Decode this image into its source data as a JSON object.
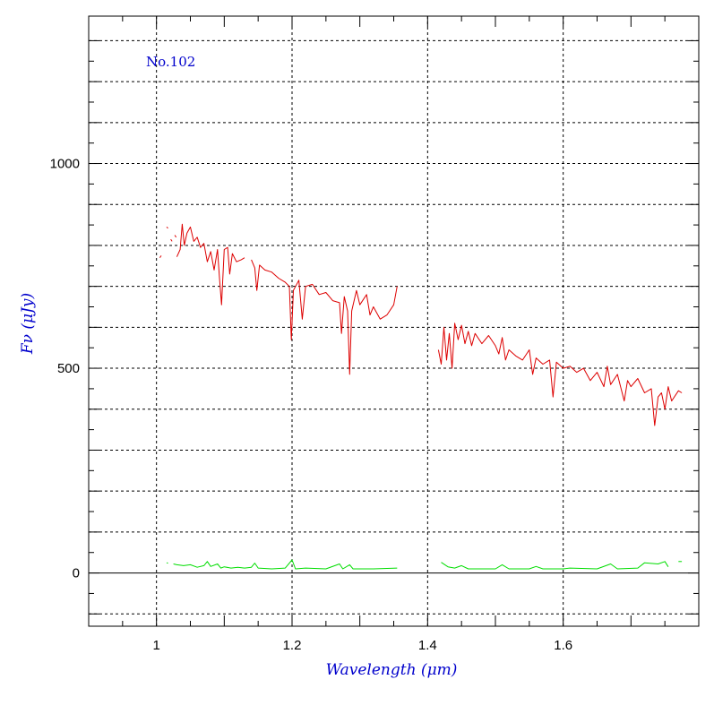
{
  "chart_data": {
    "type": "line",
    "annotation": "No.102",
    "xlabel": "Wavelength (μm)",
    "ylabel": "Fν (μJy)",
    "xlim": [
      0.9,
      1.8
    ],
    "ylim": [
      -130,
      1360
    ],
    "x_ticks": [
      1,
      1.2,
      1.4,
      1.6
    ],
    "x_tick_labels": [
      "1",
      "1.2",
      "1.4",
      "1.6"
    ],
    "y_ticks": [
      0,
      500,
      1000
    ],
    "y_tick_labels": [
      "0",
      "500",
      "1000"
    ],
    "grid": true,
    "colors": {
      "spectrum": "#dd0000",
      "noise": "#00dd00",
      "label": "#0000cc",
      "axis": "#000000"
    },
    "series": [
      {
        "role": "spectrum",
        "segments": [
          [
            [
              1.005,
              770
            ],
            [
              1.007,
              775
            ]
          ],
          [
            [
              1.015,
              845
            ],
            [
              1.017,
              842
            ]
          ],
          [
            [
              1.021,
              815
            ],
            [
              1.023,
              810
            ]
          ],
          [
            [
              1.027,
              825
            ],
            [
              1.029,
              820
            ]
          ],
          [
            [
              1.03,
              772
            ],
            [
              1.035,
              790
            ],
            [
              1.038,
              852
            ],
            [
              1.041,
              800
            ],
            [
              1.045,
              830
            ],
            [
              1.05,
              845
            ],
            [
              1.055,
              810
            ],
            [
              1.06,
              820
            ],
            [
              1.065,
              795
            ],
            [
              1.07,
              805
            ],
            [
              1.075,
              760
            ],
            [
              1.08,
              785
            ],
            [
              1.085,
              740
            ],
            [
              1.09,
              790
            ],
            [
              1.093,
              720
            ],
            [
              1.096,
              655
            ],
            [
              1.1,
              790
            ],
            [
              1.105,
              795
            ],
            [
              1.108,
              730
            ],
            [
              1.112,
              780
            ],
            [
              1.118,
              760
            ],
            [
              1.125,
              765
            ],
            [
              1.13,
              770
            ]
          ],
          [
            [
              1.14,
              765
            ],
            [
              1.145,
              745
            ],
            [
              1.148,
              690
            ],
            [
              1.152,
              752
            ],
            [
              1.16,
              740
            ],
            [
              1.17,
              735
            ],
            [
              1.18,
              720
            ],
            [
              1.19,
              710
            ],
            [
              1.196,
              700
            ],
            [
              1.199,
              570
            ],
            [
              1.202,
              690
            ],
            [
              1.21,
              715
            ],
            [
              1.215,
              620
            ],
            [
              1.22,
              700
            ],
            [
              1.23,
              705
            ],
            [
              1.24,
              680
            ],
            [
              1.25,
              685
            ],
            [
              1.26,
              665
            ],
            [
              1.27,
              660
            ],
            [
              1.273,
              585
            ],
            [
              1.277,
              675
            ],
            [
              1.282,
              640
            ],
            [
              1.285,
              485
            ],
            [
              1.288,
              640
            ],
            [
              1.295,
              690
            ],
            [
              1.3,
              655
            ],
            [
              1.31,
              680
            ],
            [
              1.315,
              630
            ],
            [
              1.32,
              650
            ],
            [
              1.33,
              620
            ],
            [
              1.34,
              630
            ],
            [
              1.35,
              655
            ],
            [
              1.355,
              700
            ]
          ],
          [
            [
              1.416,
              545
            ],
            [
              1.42,
              510
            ],
            [
              1.424,
              600
            ],
            [
              1.428,
              520
            ],
            [
              1.432,
              585
            ],
            [
              1.436,
              500
            ],
            [
              1.44,
              610
            ],
            [
              1.445,
              570
            ],
            [
              1.45,
              605
            ],
            [
              1.455,
              560
            ],
            [
              1.46,
              590
            ],
            [
              1.465,
              555
            ],
            [
              1.47,
              585
            ],
            [
              1.48,
              560
            ],
            [
              1.49,
              580
            ],
            [
              1.5,
              555
            ],
            [
              1.505,
              535
            ],
            [
              1.51,
              575
            ],
            [
              1.515,
              520
            ],
            [
              1.52,
              545
            ],
            [
              1.53,
              530
            ],
            [
              1.54,
              520
            ],
            [
              1.55,
              545
            ],
            [
              1.555,
              485
            ],
            [
              1.56,
              525
            ],
            [
              1.57,
              510
            ],
            [
              1.58,
              520
            ],
            [
              1.585,
              430
            ],
            [
              1.59,
              515
            ],
            [
              1.6,
              500
            ],
            [
              1.61,
              505
            ],
            [
              1.62,
              490
            ],
            [
              1.63,
              500
            ],
            [
              1.64,
              470
            ],
            [
              1.65,
              490
            ],
            [
              1.66,
              455
            ],
            [
              1.665,
              505
            ],
            [
              1.67,
              460
            ],
            [
              1.68,
              485
            ],
            [
              1.69,
              420
            ],
            [
              1.695,
              470
            ],
            [
              1.7,
              455
            ],
            [
              1.71,
              475
            ],
            [
              1.72,
              440
            ],
            [
              1.73,
              450
            ],
            [
              1.735,
              360
            ],
            [
              1.74,
              430
            ],
            [
              1.745,
              440
            ],
            [
              1.75,
              400
            ],
            [
              1.755,
              455
            ],
            [
              1.76,
              420
            ],
            [
              1.77,
              445
            ],
            [
              1.775,
              440
            ]
          ]
        ]
      },
      {
        "role": "noise",
        "segments": [
          [
            [
              1.015,
              25
            ],
            [
              1.017,
              24
            ]
          ],
          [
            [
              1.025,
              22
            ],
            [
              1.03,
              20
            ],
            [
              1.04,
              18
            ],
            [
              1.05,
              20
            ],
            [
              1.06,
              14
            ],
            [
              1.07,
              18
            ],
            [
              1.075,
              28
            ],
            [
              1.08,
              16
            ],
            [
              1.09,
              22
            ],
            [
              1.095,
              12
            ],
            [
              1.1,
              15
            ],
            [
              1.11,
              12
            ],
            [
              1.12,
              14
            ],
            [
              1.13,
              12
            ],
            [
              1.14,
              14
            ],
            [
              1.145,
              24
            ],
            [
              1.15,
              12
            ],
            [
              1.17,
              10
            ],
            [
              1.19,
              12
            ],
            [
              1.2,
              32
            ],
            [
              1.205,
              10
            ],
            [
              1.22,
              12
            ],
            [
              1.25,
              10
            ],
            [
              1.27,
              22
            ],
            [
              1.275,
              10
            ],
            [
              1.285,
              20
            ],
            [
              1.29,
              10
            ],
            [
              1.32,
              10
            ],
            [
              1.355,
              12
            ]
          ],
          [
            [
              1.42,
              26
            ],
            [
              1.43,
              15
            ],
            [
              1.44,
              12
            ],
            [
              1.45,
              18
            ],
            [
              1.46,
              10
            ],
            [
              1.5,
              10
            ],
            [
              1.51,
              20
            ],
            [
              1.52,
              10
            ],
            [
              1.55,
              10
            ],
            [
              1.56,
              16
            ],
            [
              1.57,
              10
            ],
            [
              1.6,
              10
            ],
            [
              1.61,
              12
            ],
            [
              1.65,
              10
            ],
            [
              1.67,
              22
            ],
            [
              1.68,
              10
            ],
            [
              1.71,
              12
            ],
            [
              1.72,
              25
            ],
            [
              1.74,
              22
            ],
            [
              1.75,
              28
            ],
            [
              1.755,
              15
            ]
          ],
          [
            [
              1.77,
              28
            ],
            [
              1.775,
              28
            ]
          ]
        ]
      }
    ]
  }
}
